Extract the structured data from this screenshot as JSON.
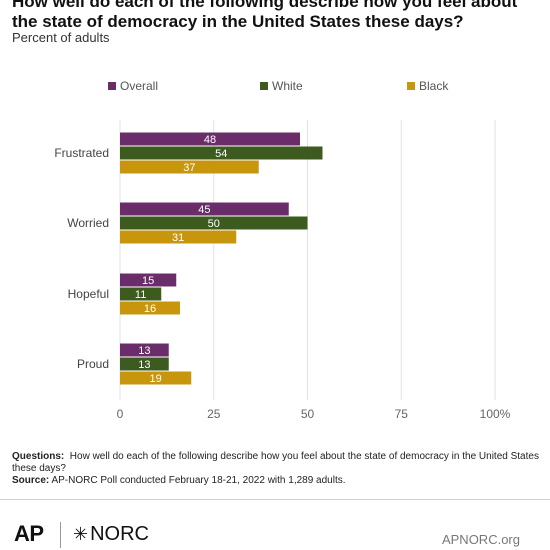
{
  "header": {
    "title": "How well do each of the following describe how you feel about the state of democracy in the United States these days?",
    "subtitle": "Percent of adults"
  },
  "legend": {
    "items": [
      {
        "label": "Overall",
        "color": "#6b2c6a"
      },
      {
        "label": "White",
        "color": "#3d5a1f"
      },
      {
        "label": "Black",
        "color": "#c8960c"
      }
    ]
  },
  "chart_data": {
    "type": "bar",
    "orientation": "horizontal",
    "categories": [
      "Frustrated",
      "Worried",
      "Hopeful",
      "Proud"
    ],
    "series": [
      {
        "name": "Overall",
        "values": [
          48,
          45,
          15,
          13
        ],
        "color": "#6b2c6a"
      },
      {
        "name": "White",
        "values": [
          54,
          50,
          11,
          13
        ],
        "color": "#3d5a1f"
      },
      {
        "name": "Black",
        "values": [
          37,
          31,
          16,
          19
        ],
        "color": "#c8960c"
      }
    ],
    "x_ticks": [
      "0",
      "25",
      "50",
      "75",
      "100%"
    ],
    "xlim": [
      0,
      100
    ],
    "grid": true,
    "legend_position": "top"
  },
  "footnote": {
    "questions_label": "Questions:",
    "questions_text": "How well do each of the following describe how you feel about the state of democracy in the United States these days?",
    "source_label": "Source:",
    "source_text": "AP-NORC Poll conducted February 18-21, 2022 with 1,289 adults."
  },
  "footer": {
    "ap_logo": "AP",
    "norc_mark": "✳",
    "norc_logo": "NORC",
    "site": "APNORC.org"
  }
}
